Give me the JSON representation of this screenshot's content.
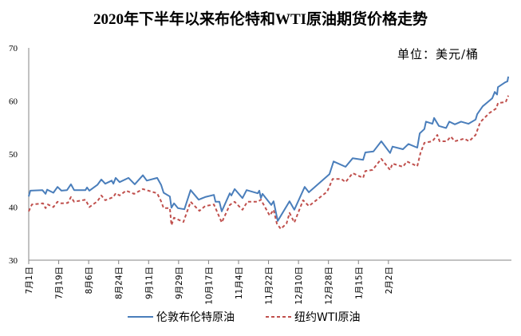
{
  "chart_data": {
    "type": "line",
    "title": "2020年下半年以来布伦特和WTI原油期货价格走势",
    "unit": "单位：美元/桶",
    "xlabel": "",
    "ylabel": "",
    "ylim": [
      30,
      70
    ],
    "yticks": [
      "30",
      "40",
      "50",
      "60",
      "70"
    ],
    "xlim": [
      0,
      208
    ],
    "x_unit": "trading day index since 7月1日",
    "xticks": [
      {
        "x": 0,
        "label": "7月1日"
      },
      {
        "x": 13,
        "label": "7月19日"
      },
      {
        "x": 26,
        "label": "8月6日"
      },
      {
        "x": 39,
        "label": "8月24日"
      },
      {
        "x": 52,
        "label": "9月11日"
      },
      {
        "x": 65,
        "label": "9月29日"
      },
      {
        "x": 78,
        "label": "10月17日"
      },
      {
        "x": 91,
        "label": "11月4日"
      },
      {
        "x": 104,
        "label": "11月22日"
      },
      {
        "x": 117,
        "label": "12月10日"
      },
      {
        "x": 130,
        "label": "12月28日"
      },
      {
        "x": 143,
        "label": "1月15日"
      },
      {
        "x": 156,
        "label": "2月2日"
      }
    ],
    "grid": false,
    "legend_position": "bottom",
    "series": [
      {
        "name": "伦敦布伦特原油",
        "color": "#4a7ebb",
        "style": "solid",
        "points": [
          [
            0,
            42.0
          ],
          [
            0.7,
            43.1
          ],
          [
            5.9,
            43.2
          ],
          [
            7.3,
            42.5
          ],
          [
            8.0,
            43.3
          ],
          [
            10.7,
            42.7
          ],
          [
            12.5,
            43.8
          ],
          [
            14.2,
            43.1
          ],
          [
            16.6,
            43.2
          ],
          [
            18.3,
            44.3
          ],
          [
            19.7,
            43.2
          ],
          [
            24.6,
            43.2
          ],
          [
            25.3,
            43.7
          ],
          [
            26.3,
            43.1
          ],
          [
            29.8,
            44.2
          ],
          [
            31.5,
            45.2
          ],
          [
            33.2,
            44.4
          ],
          [
            36.0,
            45.0
          ],
          [
            36.7,
            44.4
          ],
          [
            37.7,
            45.5
          ],
          [
            39.4,
            44.7
          ],
          [
            43.3,
            45.5
          ],
          [
            46.0,
            44.3
          ],
          [
            49.5,
            46.0
          ],
          [
            51.2,
            45.0
          ],
          [
            55.7,
            45.5
          ],
          [
            57.4,
            44.2
          ],
          [
            58.5,
            42.7
          ],
          [
            61.2,
            42.0
          ],
          [
            61.9,
            39.9
          ],
          [
            63.0,
            40.7
          ],
          [
            64.7,
            39.8
          ],
          [
            67.5,
            39.6
          ],
          [
            70.2,
            43.2
          ],
          [
            73.7,
            41.4
          ],
          [
            76.5,
            41.9
          ],
          [
            80.3,
            42.3
          ],
          [
            81.0,
            41.0
          ],
          [
            82.7,
            41.0
          ],
          [
            83.7,
            39.2
          ],
          [
            87.2,
            42.6
          ],
          [
            87.9,
            42.2
          ],
          [
            89.3,
            43.4
          ],
          [
            92.7,
            41.7
          ],
          [
            94.5,
            43.2
          ],
          [
            99.3,
            42.6
          ],
          [
            100.0,
            43.1
          ],
          [
            100.7,
            41.7
          ],
          [
            101.4,
            42.5
          ],
          [
            105.2,
            40.4
          ],
          [
            106.2,
            41.1
          ],
          [
            108.0,
            37.4
          ],
          [
            113.1,
            41.1
          ],
          [
            115.2,
            39.5
          ],
          [
            119.7,
            43.8
          ],
          [
            121.5,
            42.8
          ],
          [
            130.4,
            46.2
          ],
          [
            132.2,
            48.6
          ],
          [
            137.4,
            47.6
          ],
          [
            140.5,
            49.2
          ],
          [
            145.0,
            48.9
          ],
          [
            146.0,
            50.3
          ],
          [
            149.5,
            50.5
          ],
          [
            152.9,
            52.4
          ],
          [
            156.7,
            50.2
          ],
          [
            157.8,
            51.4
          ],
          [
            162.3,
            50.9
          ],
          [
            164.7,
            51.9
          ],
          [
            168.5,
            51.2
          ],
          [
            169.6,
            53.9
          ],
          [
            171.6,
            54.7
          ],
          [
            172.3,
            56.1
          ],
          [
            175.1,
            55.7
          ],
          [
            175.8,
            56.8
          ],
          [
            177.9,
            55.3
          ],
          [
            181.0,
            54.9
          ],
          [
            182.4,
            56.1
          ],
          [
            184.8,
            55.6
          ],
          [
            187.5,
            56.1
          ],
          [
            190.7,
            55.7
          ],
          [
            193.8,
            56.5
          ],
          [
            194.5,
            57.5
          ],
          [
            196.9,
            59.0
          ],
          [
            201.0,
            60.5
          ],
          [
            202.1,
            61.7
          ],
          [
            203.1,
            61.2
          ],
          [
            203.5,
            62.6
          ],
          [
            206.6,
            63.5
          ],
          [
            207.6,
            63.7
          ],
          [
            208.0,
            64.6
          ]
        ]
      },
      {
        "name": "纽约WTI原油",
        "color": "#c0504d",
        "style": "dashed",
        "points": [
          [
            0,
            39.2
          ],
          [
            1.4,
            40.5
          ],
          [
            6.2,
            40.7
          ],
          [
            7.3,
            39.8
          ],
          [
            8.3,
            40.5
          ],
          [
            10.7,
            40.0
          ],
          [
            12.5,
            41.0
          ],
          [
            14.2,
            40.7
          ],
          [
            17.0,
            40.8
          ],
          [
            18.3,
            41.9
          ],
          [
            19.7,
            41.0
          ],
          [
            24.6,
            41.4
          ],
          [
            26.3,
            40.0
          ],
          [
            29.8,
            41.1
          ],
          [
            31.5,
            42.2
          ],
          [
            33.2,
            41.3
          ],
          [
            36.7,
            41.9
          ],
          [
            37.7,
            42.6
          ],
          [
            39.4,
            42.2
          ],
          [
            42.2,
            43.1
          ],
          [
            45.7,
            42.5
          ],
          [
            49.5,
            43.4
          ],
          [
            55.7,
            42.6
          ],
          [
            57.4,
            41.1
          ],
          [
            58.5,
            39.8
          ],
          [
            61.2,
            39.8
          ],
          [
            61.9,
            36.6
          ],
          [
            63.0,
            38.0
          ],
          [
            67.1,
            37.2
          ],
          [
            70.2,
            41.0
          ],
          [
            74.0,
            39.3
          ],
          [
            76.5,
            40.2
          ],
          [
            80.3,
            40.5
          ],
          [
            81.3,
            39.5
          ],
          [
            83.7,
            37.1
          ],
          [
            87.2,
            40.4
          ],
          [
            89.3,
            41.0
          ],
          [
            92.7,
            39.5
          ],
          [
            94.8,
            41.0
          ],
          [
            99.3,
            41.0
          ],
          [
            100.7,
            41.4
          ],
          [
            104.5,
            38.4
          ],
          [
            106.2,
            39.5
          ],
          [
            107.6,
            36.9
          ],
          [
            109.3,
            35.9
          ],
          [
            111.8,
            36.9
          ],
          [
            113.1,
            38.9
          ],
          [
            115.2,
            37.1
          ],
          [
            119.0,
            41.3
          ],
          [
            121.5,
            40.2
          ],
          [
            129.4,
            42.9
          ],
          [
            131.8,
            45.3
          ],
          [
            135.6,
            45.3
          ],
          [
            137.4,
            44.7
          ],
          [
            140.5,
            46.4
          ],
          [
            145.0,
            45.5
          ],
          [
            146.0,
            46.8
          ],
          [
            149.1,
            47.0
          ],
          [
            152.9,
            49.1
          ],
          [
            156.7,
            47.0
          ],
          [
            157.8,
            48.2
          ],
          [
            162.3,
            47.6
          ],
          [
            164.0,
            48.6
          ],
          [
            168.5,
            47.7
          ],
          [
            169.9,
            50.2
          ],
          [
            171.6,
            52.1
          ],
          [
            175.1,
            52.4
          ],
          [
            177.2,
            53.6
          ],
          [
            178.2,
            52.4
          ],
          [
            181.3,
            52.4
          ],
          [
            183.0,
            53.3
          ],
          [
            184.8,
            52.4
          ],
          [
            188.9,
            52.9
          ],
          [
            191.0,
            52.4
          ],
          [
            193.8,
            53.6
          ],
          [
            195.8,
            56.0
          ],
          [
            199.7,
            57.7
          ],
          [
            202.8,
            58.6
          ],
          [
            203.5,
            59.6
          ],
          [
            206.9,
            59.8
          ],
          [
            208.0,
            61.0
          ]
        ]
      }
    ]
  }
}
